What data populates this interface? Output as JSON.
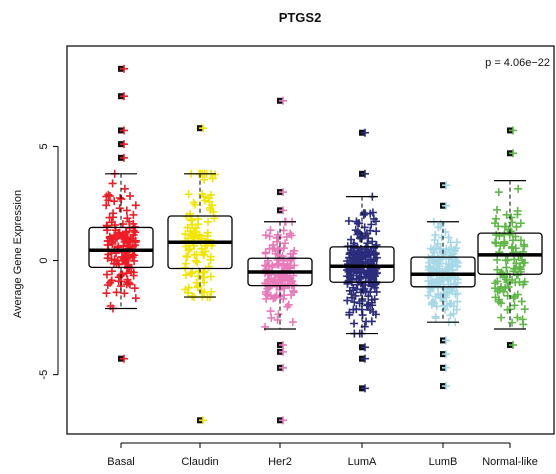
{
  "chart_data": {
    "type": "box",
    "title": "PTGS2",
    "xlabel": "",
    "ylabel": "Average Gene Expression",
    "annotation": "p = 4.06e−22",
    "ylim": [
      -7.6,
      9.4
    ],
    "yticks": [
      -5,
      0,
      5
    ],
    "yticklabels": [
      "-5",
      "0",
      "5"
    ],
    "grid": false,
    "legend": "none",
    "categories": [
      "Basal",
      "Claudin",
      "Her2",
      "LumA",
      "LumB",
      "Normal-like"
    ],
    "series": [
      {
        "color": "#ee1c25",
        "stats": {
          "min": -2.1,
          "q1": -0.3,
          "median": 0.45,
          "q3": 1.45,
          "max": 3.8
        },
        "outliers": [
          8.4,
          7.2,
          5.7,
          5.1,
          4.5,
          -4.3
        ],
        "n": 140
      },
      {
        "color": "#f2e500",
        "stats": {
          "min": -1.6,
          "q1": -0.35,
          "median": 0.8,
          "q3": 1.95,
          "max": 3.8
        },
        "outliers": [
          5.8,
          -7.0
        ],
        "n": 110
      },
      {
        "color": "#e879b9",
        "stats": {
          "min": -3.0,
          "q1": -1.1,
          "median": -0.5,
          "q3": 0.1,
          "max": 1.7
        },
        "outliers": [
          7.0,
          3.0,
          2.2,
          -3.7,
          -4.0,
          -4.7,
          -7.0
        ],
        "n": 130
      },
      {
        "color": "#2b2c7c",
        "stats": {
          "min": -3.2,
          "q1": -0.95,
          "median": -0.25,
          "q3": 0.6,
          "max": 2.8
        },
        "outliers": [
          5.6,
          3.8,
          -3.8,
          -4.3,
          -5.6
        ],
        "n": 230
      },
      {
        "color": "#a7d8e8",
        "stats": {
          "min": -2.7,
          "q1": -1.15,
          "median": -0.6,
          "q3": 0.15,
          "max": 1.7
        },
        "outliers": [
          3.3,
          2.4,
          -3.5,
          -4.1,
          -4.7,
          -5.5
        ],
        "n": 170
      },
      {
        "color": "#5fb846",
        "stats": {
          "min": -3.0,
          "q1": -0.6,
          "median": 0.25,
          "q3": 1.2,
          "max": 3.5
        },
        "outliers": [
          5.7,
          4.7,
          -3.7
        ],
        "n": 100
      }
    ]
  }
}
